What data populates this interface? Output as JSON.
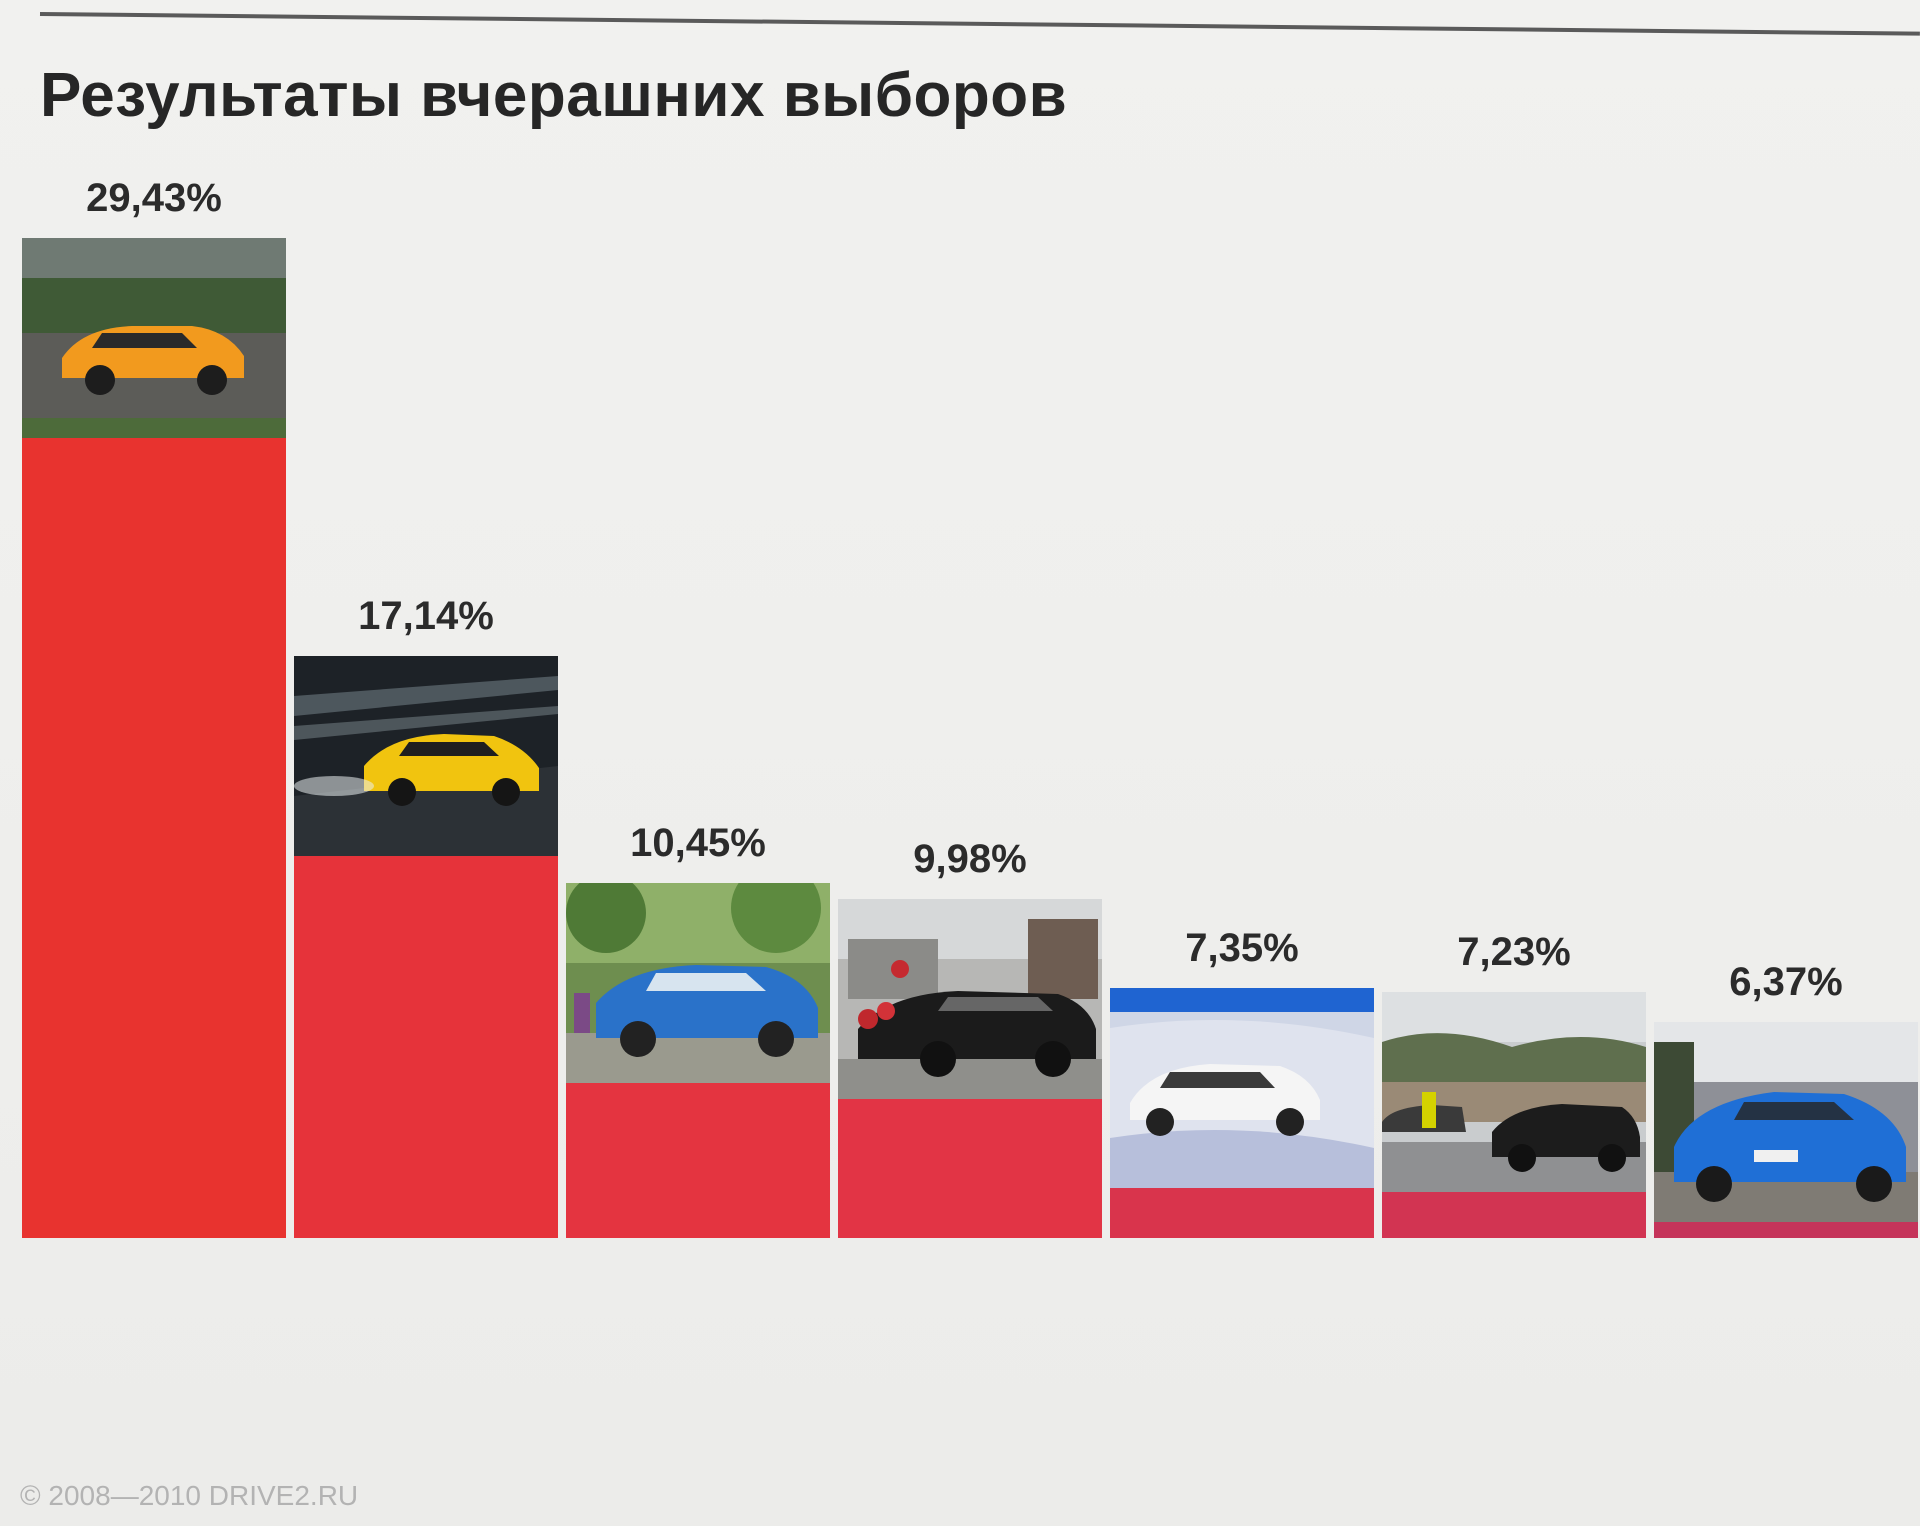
{
  "page": {
    "title": "Результаты вчерашних выборов",
    "copyright": "© 2008—2010 DRIVE2.RU"
  },
  "chart_data": {
    "type": "bar",
    "title": "Результаты вчерашних выборов",
    "xlabel": "",
    "ylabel": "",
    "grid": false,
    "unit": "%",
    "categories": [
      "",
      "",
      "",
      "",
      "",
      "",
      ""
    ],
    "values": [
      29.43,
      17.14,
      10.45,
      9.98,
      7.35,
      7.23,
      6.37
    ],
    "value_labels": [
      "29,43%",
      "17,14%",
      "10,45%",
      "9,98%",
      "7,35%",
      "7,23%",
      "6,37%"
    ],
    "photo_subjects": [
      "orange-sports-car-icon",
      "yellow-coupe-icon",
      "blue-hatchback-icon",
      "black-roadster-icon",
      "white-suv-icon",
      "black-sports-cars-icon",
      "blue-hatchback-icon"
    ],
    "bar_colors": [
      "#e8332f",
      "#e6333a",
      "#e43440",
      "#e23445",
      "#d9344c",
      "#d23452",
      "#c5345a"
    ]
  }
}
